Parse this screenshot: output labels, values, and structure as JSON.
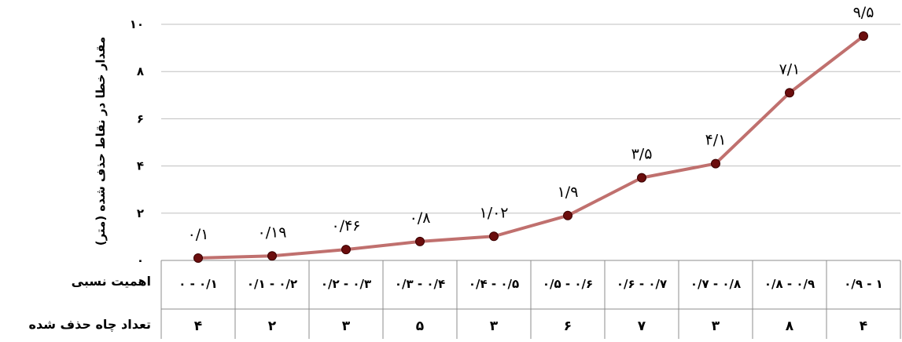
{
  "chart_data": {
    "type": "line",
    "ylabel": "مقدار خطا در نقاط حذف شده (متر)",
    "ylim": [
      0,
      10
    ],
    "yticks": [
      "۰",
      "۲",
      "۴",
      "۶",
      "۸",
      "۱۰"
    ],
    "ytick_values": [
      0,
      2,
      4,
      6,
      8,
      10
    ],
    "grid": true,
    "line_color": "#c0706e",
    "marker_color": "#6b0d0d",
    "categories": [
      "۰ - ۰/۱",
      "۰/۱ - ۰/۲",
      "۰/۲ - ۰/۳",
      "۰/۳ - ۰/۴",
      "۰/۴ - ۰/۵",
      "۰/۵ - ۰/۶",
      "۰/۶ - ۰/۷",
      "۰/۷ - ۰/۸",
      "۰/۸ - ۰/۹",
      "۰/۹ - ۱"
    ],
    "values": [
      0.1,
      0.19,
      0.46,
      0.8,
      1.02,
      1.9,
      3.5,
      4.1,
      7.1,
      9.5
    ],
    "data_labels": [
      "۰/۱",
      "۰/۱۹",
      "۰/۴۶",
      "۰/۸",
      "۱/۰۲",
      "۱/۹",
      "۳/۵",
      "۴/۱",
      "۷/۱",
      "۹/۵"
    ],
    "table": {
      "row1_label": "اهمیت نسبی",
      "row2_label": "تعداد  چاه حذف شده",
      "counts": [
        "۴",
        "۲",
        "۳",
        "۵",
        "۳",
        "۶",
        "۷",
        "۳",
        "۸",
        "۴"
      ]
    }
  }
}
